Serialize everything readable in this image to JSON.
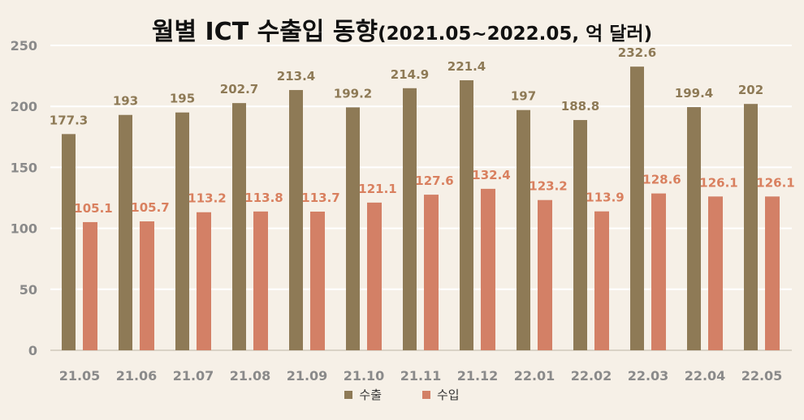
{
  "chart_data": {
    "type": "bar",
    "title": "월별 ICT 수출입 동향",
    "subtitle": "(2021.05~2022.05, 억 달러)",
    "categories": [
      "21.05",
      "21.06",
      "21.07",
      "21.08",
      "21.09",
      "21.10",
      "21.11",
      "21.12",
      "22.01",
      "22.02",
      "22.03",
      "22.04",
      "22.05"
    ],
    "series": [
      {
        "name": "수출",
        "color": "#8e7a56",
        "values": [
          177.3,
          193,
          195,
          202.7,
          213.4,
          199.2,
          214.9,
          221.4,
          197,
          188.8,
          232.6,
          199.4,
          202
        ]
      },
      {
        "name": "수입",
        "color": "#d38066",
        "values": [
          105.1,
          105.7,
          113.2,
          113.8,
          113.7,
          121.1,
          127.6,
          132.4,
          123.2,
          113.9,
          128.6,
          126.1,
          126.1
        ]
      }
    ],
    "ylim": [
      0,
      250
    ],
    "yticks": [
      0,
      50,
      100,
      150,
      200,
      250
    ],
    "grid": true,
    "legend": "bottom",
    "xlabel": "",
    "ylabel": ""
  }
}
